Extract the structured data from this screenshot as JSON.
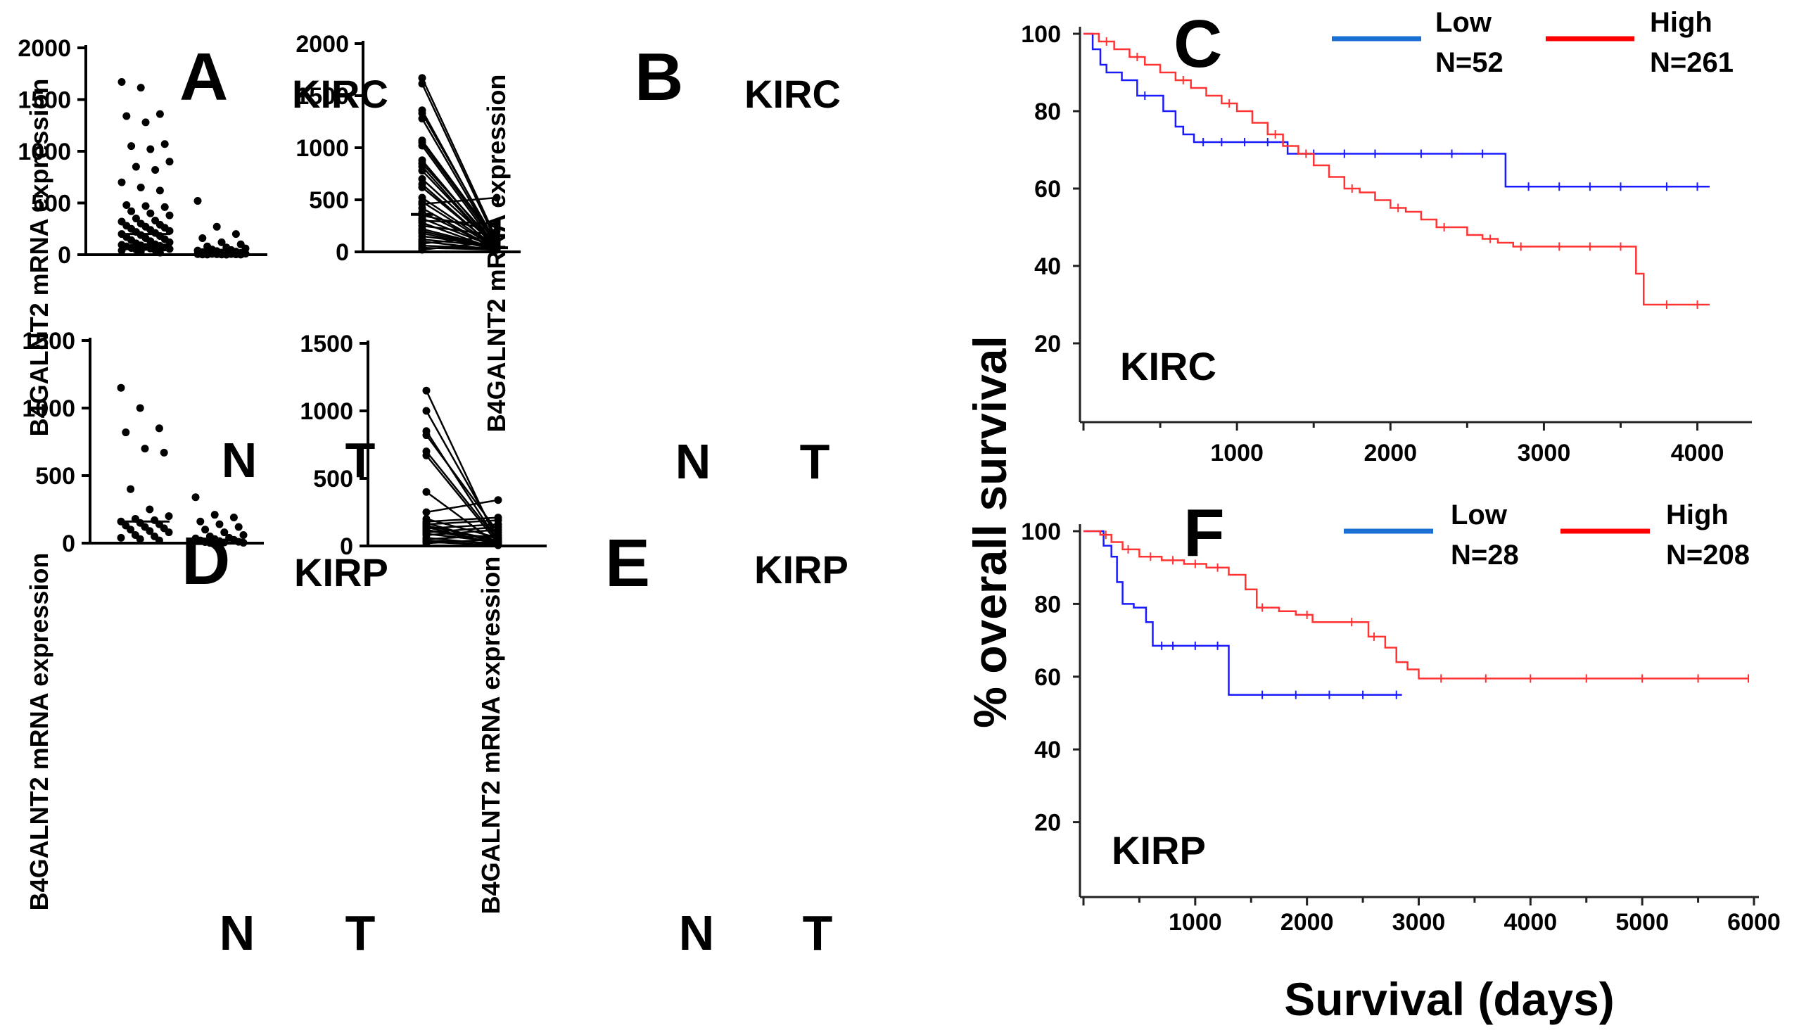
{
  "figure": {
    "shared_ylabel": "% overall survival",
    "shared_xlabel": "Survival (days)"
  },
  "chart_data": [
    {
      "id": "A",
      "panel": "A",
      "title": "KIRC",
      "type": "scatter",
      "ylabel": "B4GALNT2 mRNA expression",
      "categories": [
        "N",
        "T"
      ],
      "yticks": [
        0,
        500,
        1000,
        1500,
        2000
      ],
      "ylim": [
        0,
        2000
      ],
      "median": [
        200,
        10
      ],
      "series": [
        {
          "name": "N",
          "values": [
            1670,
            1615,
            1360,
            1340,
            1280,
            1070,
            1050,
            1020,
            900,
            850,
            820,
            700,
            650,
            620,
            480,
            470,
            460,
            420,
            400,
            380,
            350,
            330,
            320,
            300,
            290,
            280,
            270,
            260,
            250,
            240,
            230,
            220,
            210,
            200,
            190,
            180,
            170,
            160,
            150,
            140,
            130,
            120,
            110,
            100,
            95,
            90,
            85,
            80,
            75,
            70,
            65,
            60,
            55,
            50,
            45,
            40,
            30,
            20
          ]
        },
        {
          "name": "T",
          "values": [
            520,
            270,
            200,
            160,
            120,
            100,
            80,
            70,
            60,
            50,
            45,
            40,
            35,
            30,
            25,
            20,
            18,
            15,
            12,
            10,
            8,
            6,
            5,
            4,
            3,
            2,
            2,
            1,
            1,
            0
          ]
        }
      ]
    },
    {
      "id": "B",
      "panel": "B",
      "title": "KIRC",
      "type": "paired",
      "ylabel": "B4GALNT2 mRNA expression",
      "categories": [
        "N",
        "T"
      ],
      "yticks": [
        0,
        500,
        1000,
        1500,
        2000
      ],
      "ylim": [
        0,
        2000
      ],
      "mean": [
        360,
        40
      ],
      "pairs": [
        [
          1670,
          120
        ],
        [
          1615,
          90
        ],
        [
          1360,
          60
        ],
        [
          1330,
          80
        ],
        [
          1280,
          50
        ],
        [
          1070,
          100
        ],
        [
          1050,
          70
        ],
        [
          1020,
          40
        ],
        [
          880,
          30
        ],
        [
          850,
          60
        ],
        [
          820,
          20
        ],
        [
          780,
          30
        ],
        [
          700,
          50
        ],
        [
          650,
          20
        ],
        [
          620,
          30
        ],
        [
          520,
          40
        ],
        [
          480,
          30
        ],
        [
          460,
          520
        ],
        [
          420,
          20
        ],
        [
          380,
          30
        ],
        [
          350,
          200
        ],
        [
          320,
          40
        ],
        [
          300,
          270
        ],
        [
          280,
          20
        ],
        [
          250,
          160
        ],
        [
          220,
          40
        ],
        [
          200,
          30
        ],
        [
          180,
          20
        ],
        [
          150,
          60
        ],
        [
          120,
          50
        ],
        [
          100,
          20
        ],
        [
          80,
          150
        ],
        [
          60,
          30
        ],
        [
          40,
          20
        ],
        [
          20,
          100
        ]
      ]
    },
    {
      "id": "C",
      "panel": "C",
      "title": "KIRC",
      "type": "line",
      "subtype": "kaplan-meier",
      "xticks": [
        1000,
        2000,
        3000,
        4000
      ],
      "xlim": [
        0,
        4300
      ],
      "yticks": [
        20,
        40,
        60,
        80,
        100
      ],
      "ylim": [
        0,
        102
      ],
      "series": [
        {
          "name": "Low",
          "n_label": "N=52",
          "color": "#1a1aff",
          "x": [
            0,
            60,
            110,
            150,
            250,
            350,
            520,
            600,
            650,
            720,
            1330,
            2750,
            4080
          ],
          "y": [
            100,
            96,
            92,
            90,
            88,
            84,
            80,
            76,
            74,
            72,
            69,
            60.5,
            60.5
          ],
          "censored_x": [
            400,
            780,
            900,
            1050,
            1200,
            1500,
            1700,
            1900,
            2200,
            2400,
            2600,
            2900,
            3100,
            3300,
            3500,
            3800,
            4000
          ]
        },
        {
          "name": "High",
          "n_label": "N=261",
          "color": "#ff3333",
          "x": [
            0,
            100,
            200,
            300,
            400,
            500,
            600,
            700,
            800,
            900,
            1000,
            1100,
            1200,
            1300,
            1400,
            1500,
            1600,
            1700,
            1800,
            1900,
            2000,
            2100,
            2200,
            2300,
            2400,
            2500,
            2600,
            2700,
            2800,
            2900,
            3000,
            3550,
            3600,
            3650,
            4080
          ],
          "y": [
            100,
            98,
            96,
            94,
            92,
            90,
            88,
            86,
            84,
            82,
            80,
            77,
            74,
            71,
            69,
            66,
            63,
            60,
            59,
            57,
            55,
            54,
            52,
            50,
            50,
            48,
            47,
            46,
            45,
            45,
            45,
            45,
            38,
            30,
            30
          ],
          "censored_x": [
            150,
            350,
            650,
            950,
            1250,
            1450,
            1750,
            2050,
            2350,
            2650,
            2850,
            3100,
            3300,
            3500,
            3800,
            4000
          ]
        }
      ]
    },
    {
      "id": "D",
      "panel": "D",
      "title": "KIRP",
      "type": "scatter",
      "ylabel": "B4GALNT2 mRNA expression",
      "categories": [
        "N",
        "T"
      ],
      "yticks": [
        0,
        500,
        1000,
        1500
      ],
      "ylim": [
        0,
        1500
      ],
      "median": [
        160,
        25
      ],
      "series": [
        {
          "name": "N",
          "values": [
            1150,
            1000,
            850,
            820,
            700,
            670,
            400,
            250,
            200,
            180,
            170,
            160,
            150,
            140,
            130,
            120,
            110,
            100,
            90,
            80,
            60,
            50,
            40,
            30,
            20
          ]
        },
        {
          "name": "T",
          "values": [
            340,
            210,
            190,
            160,
            140,
            120,
            100,
            80,
            60,
            50,
            40,
            35,
            30,
            25,
            20,
            15,
            10,
            8,
            5,
            3,
            2
          ]
        }
      ]
    },
    {
      "id": "E",
      "panel": "E",
      "title": "KIRP",
      "type": "paired",
      "ylabel": "B4GALNT2 mRNA expression",
      "categories": [
        "N",
        "T"
      ],
      "yticks": [
        0,
        500,
        1000,
        1500
      ],
      "ylim": [
        0,
        1500
      ],
      "pairs": [
        [
          1150,
          20
        ],
        [
          1000,
          60
        ],
        [
          850,
          30
        ],
        [
          820,
          100
        ],
        [
          700,
          40
        ],
        [
          670,
          20
        ],
        [
          400,
          10
        ],
        [
          250,
          340
        ],
        [
          200,
          60
        ],
        [
          180,
          210
        ],
        [
          170,
          20
        ],
        [
          160,
          190
        ],
        [
          150,
          40
        ],
        [
          140,
          10
        ],
        [
          130,
          160
        ],
        [
          120,
          20
        ],
        [
          110,
          60
        ],
        [
          100,
          140
        ],
        [
          90,
          30
        ],
        [
          80,
          120
        ],
        [
          60,
          10
        ],
        [
          50,
          80
        ],
        [
          40,
          20
        ],
        [
          30,
          5
        ],
        [
          20,
          50
        ]
      ]
    },
    {
      "id": "F",
      "panel": "F",
      "title": "KIRP",
      "type": "line",
      "subtype": "kaplan-meier",
      "xticks": [
        1000,
        2000,
        3000,
        4000,
        5000,
        6000
      ],
      "xlim": [
        0,
        6000
      ],
      "yticks": [
        20,
        40,
        60,
        80,
        100
      ],
      "ylim": [
        0,
        102
      ],
      "series": [
        {
          "name": "Low",
          "n_label": "N=28",
          "color": "#1a1aff",
          "x": [
            0,
            180,
            250,
            300,
            350,
            450,
            560,
            620,
            1300,
            2850
          ],
          "y": [
            100,
            96,
            93,
            86,
            80,
            79,
            75,
            68.5,
            55,
            55
          ],
          "censored_x": [
            700,
            800,
            1000,
            1200,
            1600,
            1900,
            2200,
            2500,
            2800
          ]
        },
        {
          "name": "High",
          "n_label": "N=208",
          "color": "#ff3333",
          "x": [
            0,
            150,
            250,
            350,
            500,
            700,
            900,
            1100,
            1300,
            1450,
            1550,
            1750,
            1900,
            2050,
            2300,
            2550,
            2700,
            2800,
            2900,
            3000,
            5950
          ],
          "y": [
            100,
            99,
            97,
            95,
            93,
            92,
            91,
            90,
            88,
            84,
            79,
            78,
            77,
            75,
            75,
            71,
            68,
            64,
            62,
            59.5,
            59.5
          ],
          "censored_x": [
            200,
            400,
            600,
            800,
            1000,
            1200,
            1600,
            2000,
            2400,
            2600,
            3200,
            3600,
            4000,
            4500,
            5000,
            5500,
            5950
          ]
        }
      ]
    }
  ]
}
